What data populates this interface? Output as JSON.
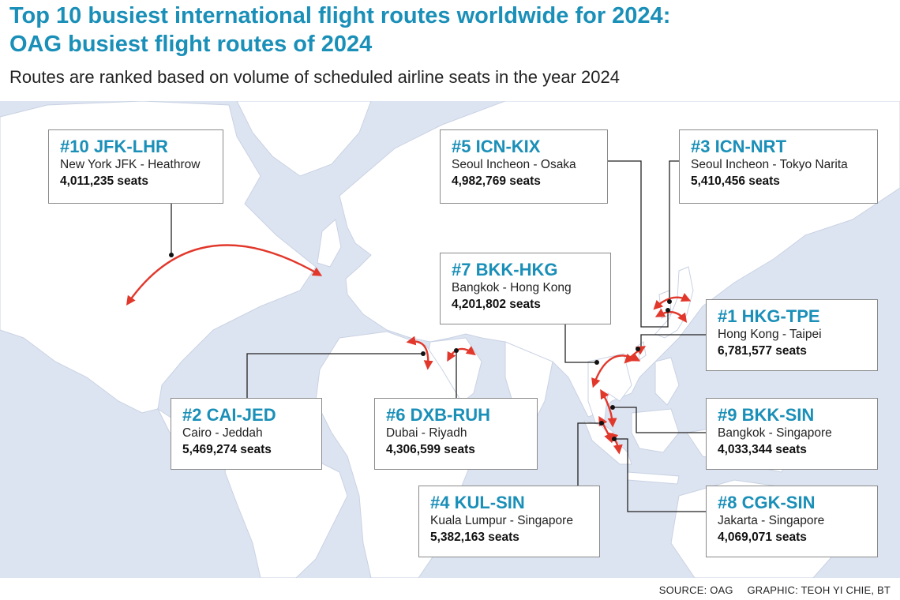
{
  "header": {
    "title_line1": "Top 10 busiest international flight routes worldwide for 2024:",
    "title_line2": "OAG busiest flight routes of 2024",
    "subtitle": "Routes are ranked based on volume of scheduled airline seats in the year 2024"
  },
  "colors": {
    "accent": "#1a8fb8",
    "ocean": "#dde4f1",
    "land": "#ffffff",
    "route_arc": "#e2382c",
    "leader_line": "#222222"
  },
  "routes": [
    {
      "rank": 10,
      "code": "#10 JFK-LHR",
      "name": "New York JFK - Heathrow",
      "seats": "4,011,235 seats"
    },
    {
      "rank": 5,
      "code": "#5 ICN-KIX",
      "name": "Seoul Incheon - Osaka",
      "seats": "4,982,769 seats"
    },
    {
      "rank": 3,
      "code": "#3 ICN-NRT",
      "name": "Seoul Incheon - Tokyo Narita",
      "seats": "5,410,456 seats"
    },
    {
      "rank": 7,
      "code": "#7 BKK-HKG",
      "name": "Bangkok - Hong Kong",
      "seats": "4,201,802 seats"
    },
    {
      "rank": 1,
      "code": "#1 HKG-TPE",
      "name": "Hong Kong - Taipei",
      "seats": "6,781,577 seats"
    },
    {
      "rank": 2,
      "code": "#2 CAI-JED",
      "name": "Cairo - Jeddah",
      "seats": "5,469,274 seats"
    },
    {
      "rank": 6,
      "code": "#6 DXB-RUH",
      "name": "Dubai - Riyadh",
      "seats": "4,306,599 seats"
    },
    {
      "rank": 9,
      "code": "#9 BKK-SIN",
      "name": "Bangkok - Singapore",
      "seats": "4,033,344 seats"
    },
    {
      "rank": 4,
      "code": "#4 KUL-SIN",
      "name": "Kuala Lumpur - Singapore",
      "seats": "5,382,163 seats"
    },
    {
      "rank": 8,
      "code": "#8 CGK-SIN",
      "name": "Jakarta - Singapore",
      "seats": "4,069,071 seats"
    }
  ],
  "footer": {
    "source": "SOURCE: OAG",
    "credit": "GRAPHIC: TEOH YI CHIE, BT"
  }
}
